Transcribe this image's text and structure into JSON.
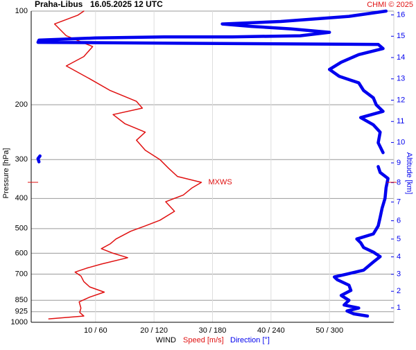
{
  "chart_data": {
    "type": "line",
    "title": "Praha-Libus",
    "subtitle": "16.05.2025 12 UTC",
    "credit": "CHMI © 2025",
    "y_label": "Pressure [hPa]",
    "y2_label": "Altitude [km]",
    "x_label": "WIND",
    "log_y": true,
    "grid": true,
    "ylim": [
      1000,
      100
    ],
    "yticks": [
      100,
      200,
      300,
      400,
      500,
      600,
      700,
      850,
      925,
      1000
    ],
    "y2ticks": [
      1,
      2,
      3,
      4,
      5,
      6,
      7,
      8,
      9,
      10,
      11,
      12,
      13,
      14,
      15,
      16
    ],
    "xlim": [
      -1,
      61
    ],
    "x2lim": [
      -6,
      366
    ],
    "xticks": [
      {
        "value": 10,
        "label": "10 / 60"
      },
      {
        "value": 20,
        "label": "20 / 120"
      },
      {
        "value": 30,
        "label": "30 / 180"
      },
      {
        "value": 40,
        "label": "40 / 240"
      },
      {
        "value": 50,
        "label": "50 / 300"
      }
    ],
    "annotation": {
      "label": "MXWS",
      "pressure": 355
    },
    "series": [
      {
        "name": "Speed [m/s]",
        "color": "#e01010",
        "pressure": [
          975,
          955,
          930,
          900,
          860,
          830,
          800,
          770,
          740,
          710,
          690,
          670,
          650,
          620,
          600,
          580,
          560,
          540,
          510,
          490,
          470,
          440,
          410,
          390,
          370,
          355,
          340,
          320,
          300,
          280,
          260,
          245,
          230,
          215,
          205,
          195,
          180,
          165,
          150,
          140,
          130,
          120,
          110,
          103,
          100
        ],
        "values": [
          2.0,
          8.0,
          7.3,
          7.5,
          7.2,
          9.0,
          11.5,
          9.0,
          8.0,
          7.5,
          6.5,
          8.5,
          11.0,
          15.5,
          13.0,
          11.0,
          12.5,
          13.5,
          16.0,
          18.5,
          21.0,
          23.5,
          22.0,
          25.0,
          26.5,
          28.1,
          24.0,
          22.5,
          21.0,
          18.5,
          17.0,
          18.5,
          15.0,
          13.0,
          18.0,
          17.0,
          12.5,
          9.0,
          5.0,
          8.0,
          9.5,
          5.0,
          3.0,
          7.0,
          8.0
        ]
      },
      {
        "name": "Direction [°]",
        "color": "#0000ee",
        "axis": "x2",
        "pressure": [
          955,
          940,
          920,
          900,
          880,
          850,
          820,
          790,
          760,
          730,
          715,
          700,
          680,
          640,
          615,
          595,
          575,
          555,
          540,
          520,
          490,
          460,
          430,
          400,
          370,
          345,
          330,
          316,
          310,
          305,
          298,
          292,
          288,
          285,
          265,
          245,
          232,
          220,
          210,
          200,
          190,
          180,
          170,
          162,
          154,
          146,
          138,
          132,
          128,
          126,
          124,
          122,
          121,
          121,
          120,
          117,
          114,
          112,
          110,
          108,
          104,
          100
        ],
        "values": [
          339,
          325,
          318,
          330,
          315,
          320,
          312,
          322,
          320,
          308,
          305,
          318,
          335,
          345,
          352,
          345,
          335,
          332,
          328,
          345,
          350,
          352,
          354,
          357,
          358,
          360,
          352,
          350,
          null,
          2,
          1,
          3,
          null,
          355,
          350,
          352,
          345,
          332,
          355,
          348,
          345,
          335,
          330,
          310,
          300,
          312,
          330,
          355,
          350,
          1,
          2,
          60,
          130,
          200,
          270,
          300,
          260,
          220,
          190,
          250,
          320,
          358
        ]
      }
    ]
  }
}
